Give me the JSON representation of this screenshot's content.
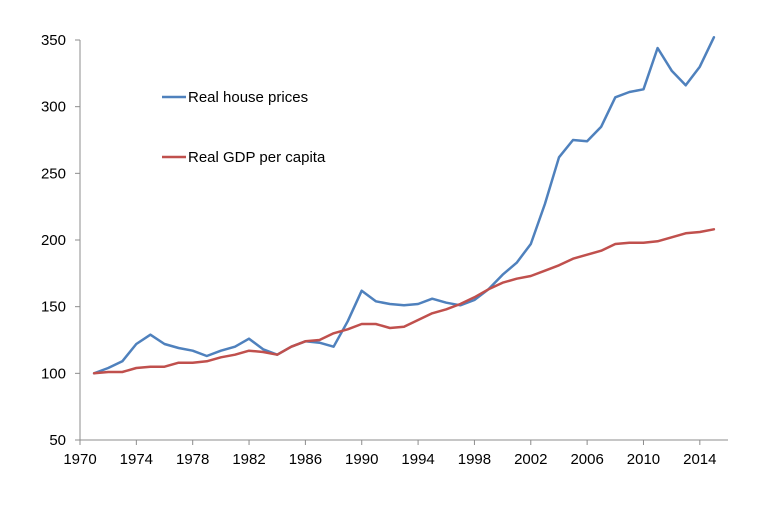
{
  "chart_data": {
    "type": "line",
    "title": "",
    "xlabel": "",
    "ylabel": "",
    "xlim": [
      1970,
      2016
    ],
    "ylim": [
      50,
      350
    ],
    "x_ticks": [
      1970,
      1974,
      1978,
      1982,
      1986,
      1990,
      1994,
      1998,
      2002,
      2006,
      2010,
      2014
    ],
    "y_ticks": [
      50,
      100,
      150,
      200,
      250,
      300,
      350
    ],
    "grid": false,
    "legend_position": "top-left",
    "series": [
      {
        "name": "Real house prices",
        "color": "#4f81bd",
        "x": [
          1971,
          1972,
          1973,
          1974,
          1975,
          1976,
          1977,
          1978,
          1979,
          1980,
          1981,
          1982,
          1983,
          1984,
          1985,
          1986,
          1987,
          1988,
          1989,
          1990,
          1991,
          1992,
          1993,
          1994,
          1995,
          1996,
          1997,
          1998,
          1999,
          2000,
          2001,
          2002,
          2003,
          2004,
          2005,
          2006,
          2007,
          2008,
          2009,
          2010,
          2011,
          2012,
          2013,
          2014,
          2015
        ],
        "y": [
          100,
          104,
          109,
          122,
          129,
          122,
          119,
          117,
          113,
          117,
          120,
          126,
          118,
          114,
          120,
          124,
          123,
          120,
          139,
          162,
          154,
          152,
          151,
          152,
          156,
          153,
          151,
          155,
          163,
          174,
          183,
          197,
          227,
          262,
          275,
          274,
          285,
          307,
          311,
          313,
          344,
          327,
          316,
          330,
          352
        ]
      },
      {
        "name": "Real GDP per capita",
        "color": "#c0504d",
        "x": [
          1971,
          1972,
          1973,
          1974,
          1975,
          1976,
          1977,
          1978,
          1979,
          1980,
          1981,
          1982,
          1983,
          1984,
          1985,
          1986,
          1987,
          1988,
          1989,
          1990,
          1991,
          1992,
          1993,
          1994,
          1995,
          1996,
          1997,
          1998,
          1999,
          2000,
          2001,
          2002,
          2003,
          2004,
          2005,
          2006,
          2007,
          2008,
          2009,
          2010,
          2011,
          2012,
          2013,
          2014,
          2015
        ],
        "y": [
          100,
          101,
          101,
          104,
          105,
          105,
          108,
          108,
          109,
          112,
          114,
          117,
          116,
          114,
          120,
          124,
          125,
          130,
          133,
          137,
          137,
          134,
          135,
          140,
          145,
          148,
          152,
          157,
          163,
          168,
          171,
          173,
          177,
          181,
          186,
          189,
          192,
          197,
          198,
          198,
          199,
          202,
          205,
          206,
          208
        ]
      }
    ]
  }
}
